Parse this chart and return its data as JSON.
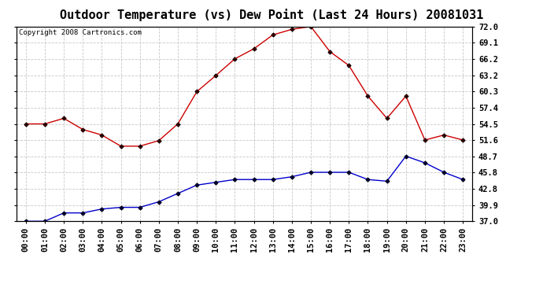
{
  "title": "Outdoor Temperature (vs) Dew Point (Last 24 Hours) 20081031",
  "copyright": "Copyright 2008 Cartronics.com",
  "hours": [
    "00:00",
    "01:00",
    "02:00",
    "03:00",
    "04:00",
    "05:00",
    "06:00",
    "07:00",
    "08:00",
    "09:00",
    "10:00",
    "11:00",
    "12:00",
    "13:00",
    "14:00",
    "15:00",
    "16:00",
    "17:00",
    "18:00",
    "19:00",
    "20:00",
    "21:00",
    "22:00",
    "23:00"
  ],
  "temp": [
    54.5,
    54.5,
    55.5,
    53.5,
    52.5,
    50.5,
    50.5,
    51.5,
    54.5,
    60.3,
    63.2,
    66.2,
    68.0,
    70.5,
    71.5,
    72.0,
    67.5,
    65.0,
    59.5,
    55.5,
    59.5,
    51.6,
    52.5,
    51.6
  ],
  "dew": [
    37.0,
    37.0,
    38.5,
    38.5,
    39.2,
    39.5,
    39.5,
    40.5,
    42.0,
    43.5,
    44.0,
    44.5,
    44.5,
    44.5,
    45.0,
    45.8,
    45.8,
    45.8,
    44.5,
    44.2,
    48.7,
    47.5,
    45.8,
    44.5
  ],
  "temp_color": "#cc0000",
  "dew_color": "#0000cc",
  "bg_color": "#ffffff",
  "grid_color": "#c8c8c8",
  "ylim": [
    37.0,
    72.0
  ],
  "yticks": [
    37.0,
    39.9,
    42.8,
    45.8,
    48.7,
    51.6,
    54.5,
    57.4,
    60.3,
    63.2,
    66.2,
    69.1,
    72.0
  ],
  "title_fontsize": 11,
  "copyright_fontsize": 6.5,
  "tick_fontsize": 7.5
}
